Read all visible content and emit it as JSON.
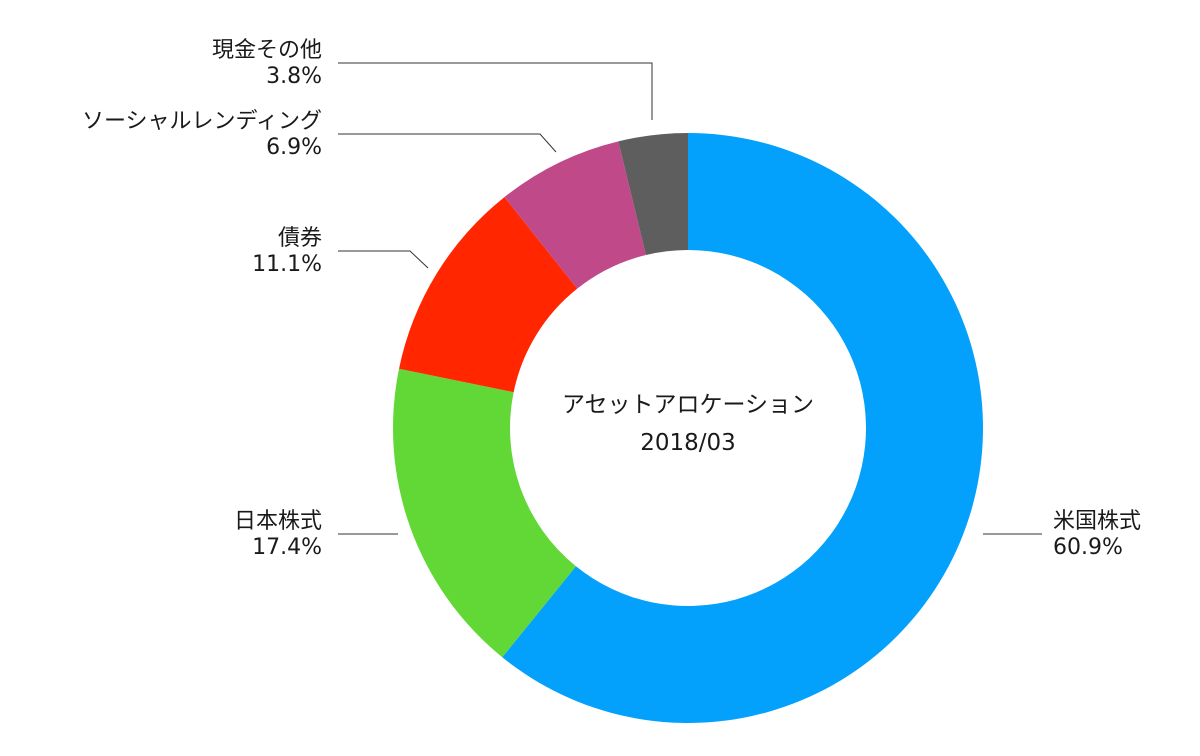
{
  "chart_data": {
    "type": "pie",
    "style": "donut",
    "center_title": "アセットアロケーション",
    "center_subtitle": "2018/03",
    "slices": [
      {
        "label": "米国株式",
        "value": 60.9,
        "value_label": "60.9%",
        "color": "#03A1FB"
      },
      {
        "label": "日本株式",
        "value": 17.4,
        "value_label": "17.4%",
        "color": "#61D836"
      },
      {
        "label": "債券",
        "value": 11.1,
        "value_label": "11.1%",
        "color": "#FF2600"
      },
      {
        "label": "ソーシャルレンディング",
        "value": 6.9,
        "value_label": "6.9%",
        "color": "#C0498A"
      },
      {
        "label": "現金その他",
        "value": 3.8,
        "value_label": "3.8%",
        "color": "#5E5E5E"
      }
    ],
    "start_angle": "top",
    "direction": "clockwise",
    "legend": "none"
  }
}
